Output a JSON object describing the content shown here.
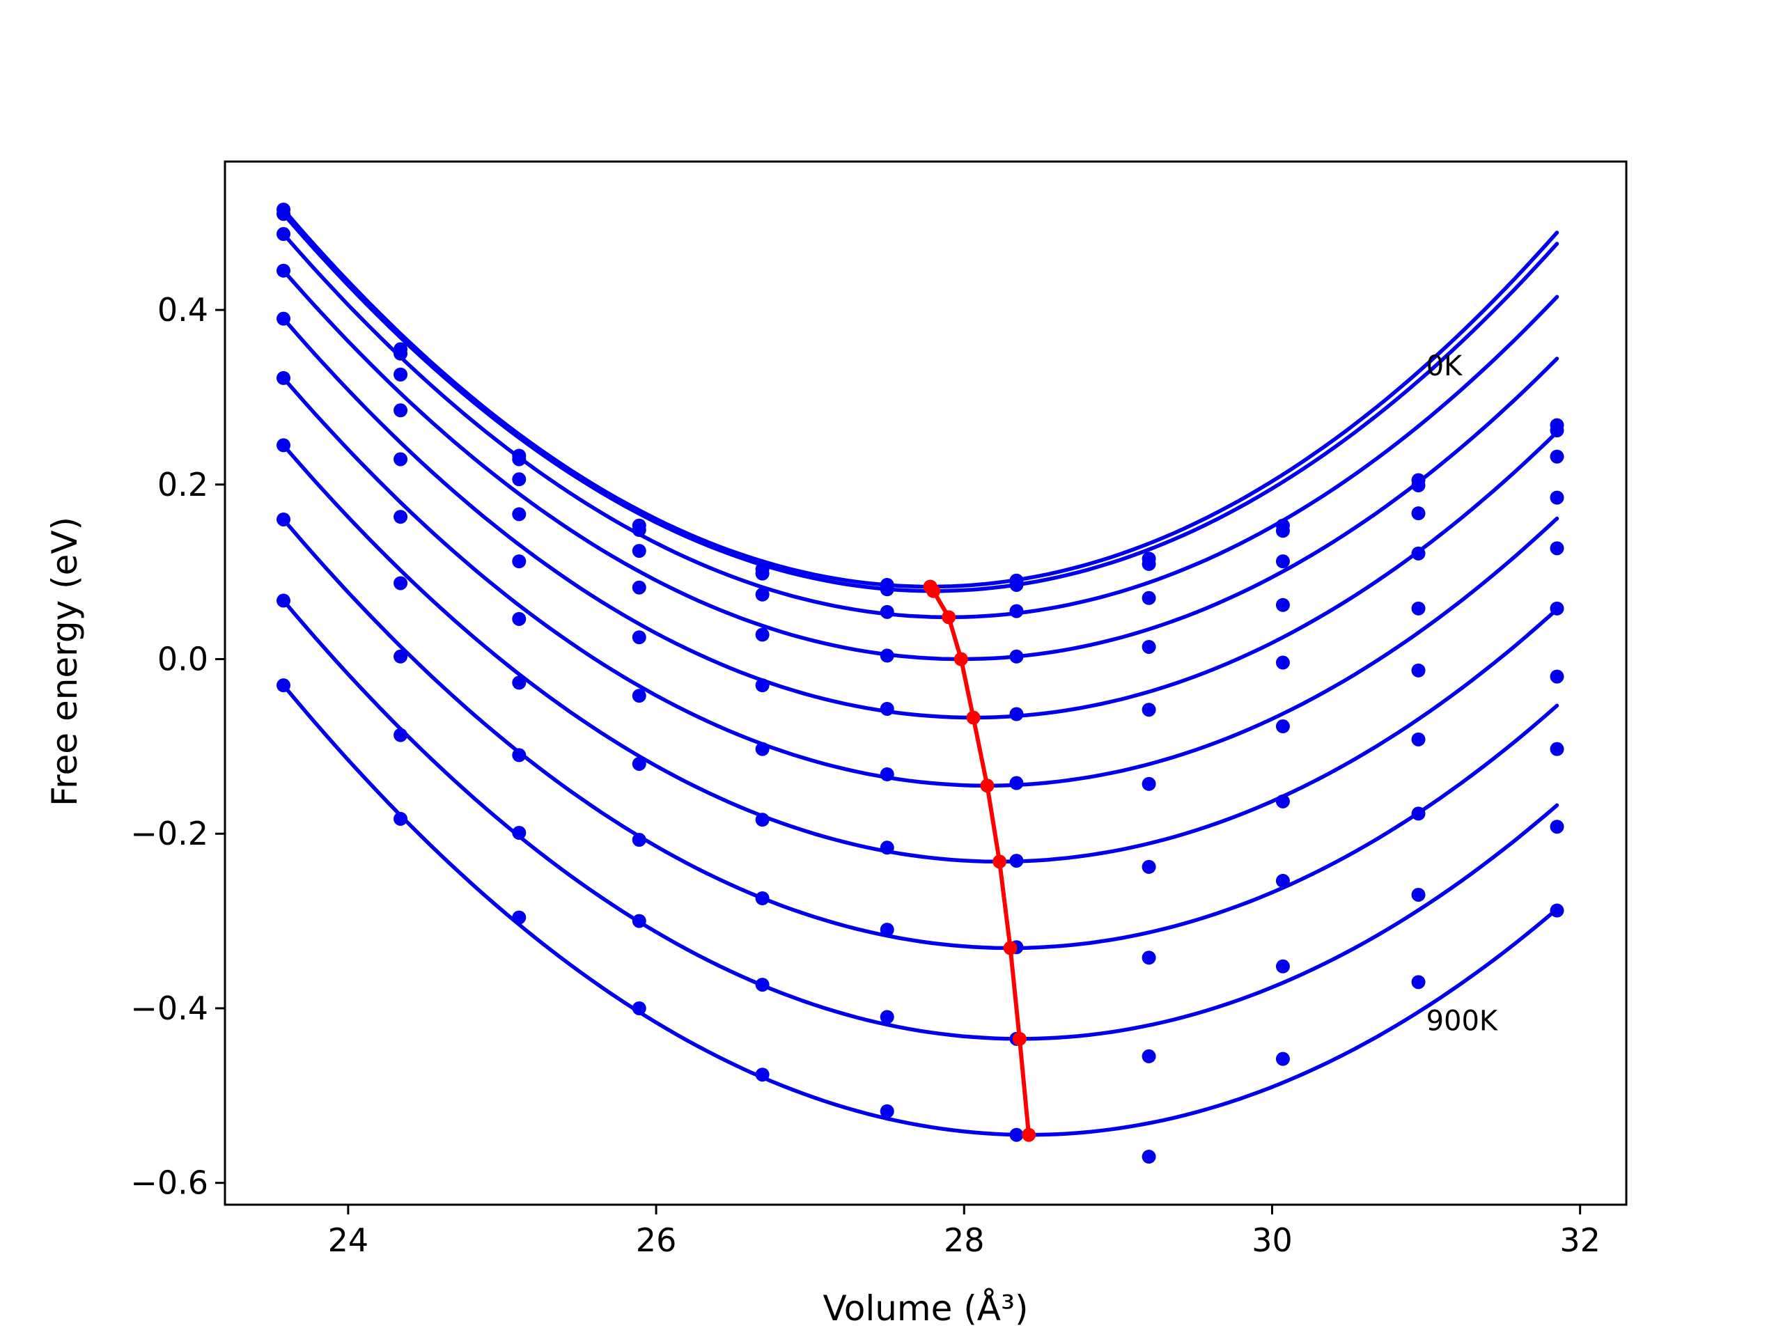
{
  "chart_data": {
    "type": "scatter",
    "title": "",
    "xlabel": "Volume (Å³)",
    "ylabel": "Free energy (eV)",
    "xlim": [
      23.2,
      32.3
    ],
    "ylim": [
      -0.625,
      0.57
    ],
    "xticks": [
      24,
      26,
      28,
      30,
      32
    ],
    "yticks": [
      0.4,
      0.2,
      0.0,
      -0.2,
      -0.4,
      -0.6
    ],
    "xtick_labels": [
      "24",
      "26",
      "28",
      "30",
      "32"
    ],
    "ytick_labels": [
      "0.4",
      "0.2",
      "0.0",
      "−0.2",
      "−0.4",
      "−0.6"
    ],
    "grid": false,
    "colors": {
      "curves": "#0000ee",
      "points": "#0000ee",
      "minimum": "#ff0000"
    },
    "annotations": [
      {
        "text": "0K",
        "x": 31.0,
        "y": 0.325
      },
      {
        "text": "900K",
        "x": 31.0,
        "y": -0.425
      }
    ],
    "x": [
      23.58,
      24.34,
      25.11,
      25.89,
      26.69,
      27.5,
      28.34,
      29.2,
      30.07,
      30.95,
      31.85
    ],
    "series": [
      {
        "points": [
          0.515,
          0.355,
          0.233,
          0.153,
          0.103,
          0.085,
          0.09,
          0.115,
          0.153,
          0.205,
          0.268
        ],
        "minimum": [
          27.78,
          0.083
        ]
      },
      {
        "points": [
          0.51,
          0.35,
          0.229,
          0.148,
          0.098,
          0.08,
          0.085,
          0.109,
          0.147,
          0.199,
          0.262
        ],
        "minimum": [
          27.8,
          0.078
        ]
      },
      {
        "points": [
          0.487,
          0.326,
          0.206,
          0.124,
          0.074,
          0.054,
          0.055,
          0.07,
          0.112,
          0.167,
          0.232
        ],
        "minimum": [
          27.9,
          0.048
        ]
      },
      {
        "points": [
          0.445,
          0.285,
          0.166,
          0.082,
          0.028,
          0.004,
          0.003,
          0.014,
          0.062,
          0.121,
          0.185
        ],
        "minimum": [
          27.98,
          0.0
        ]
      },
      {
        "points": [
          0.39,
          0.229,
          0.112,
          0.025,
          -0.03,
          -0.057,
          -0.063,
          -0.058,
          -0.004,
          0.058,
          0.127
        ],
        "minimum": [
          28.06,
          -0.067
        ]
      },
      {
        "points": [
          0.322,
          0.163,
          0.046,
          -0.042,
          -0.103,
          -0.132,
          -0.142,
          -0.143,
          -0.077,
          -0.013,
          0.058
        ],
        "minimum": [
          28.15,
          -0.145
        ]
      },
      {
        "points": [
          0.245,
          0.087,
          -0.027,
          -0.12,
          -0.184,
          -0.216,
          -0.231,
          -0.238,
          -0.163,
          -0.092,
          -0.02
        ],
        "minimum": [
          28.23,
          -0.232
        ]
      },
      {
        "points": [
          0.16,
          0.003,
          -0.11,
          -0.207,
          -0.274,
          -0.31,
          -0.33,
          -0.342,
          -0.254,
          -0.177,
          -0.103
        ],
        "minimum": [
          28.3,
          -0.331
        ]
      },
      {
        "points": [
          0.067,
          -0.087,
          -0.199,
          -0.3,
          -0.373,
          -0.41,
          -0.435,
          -0.455,
          -0.352,
          -0.27,
          -0.192
        ],
        "minimum": [
          28.36,
          -0.435
        ]
      },
      {
        "points": [
          -0.03,
          -0.183,
          -0.296,
          -0.4,
          -0.476,
          -0.518,
          -0.545,
          -0.57,
          -0.458,
          -0.37,
          -0.288
        ],
        "minimum": [
          28.42,
          -0.545
        ]
      }
    ]
  }
}
